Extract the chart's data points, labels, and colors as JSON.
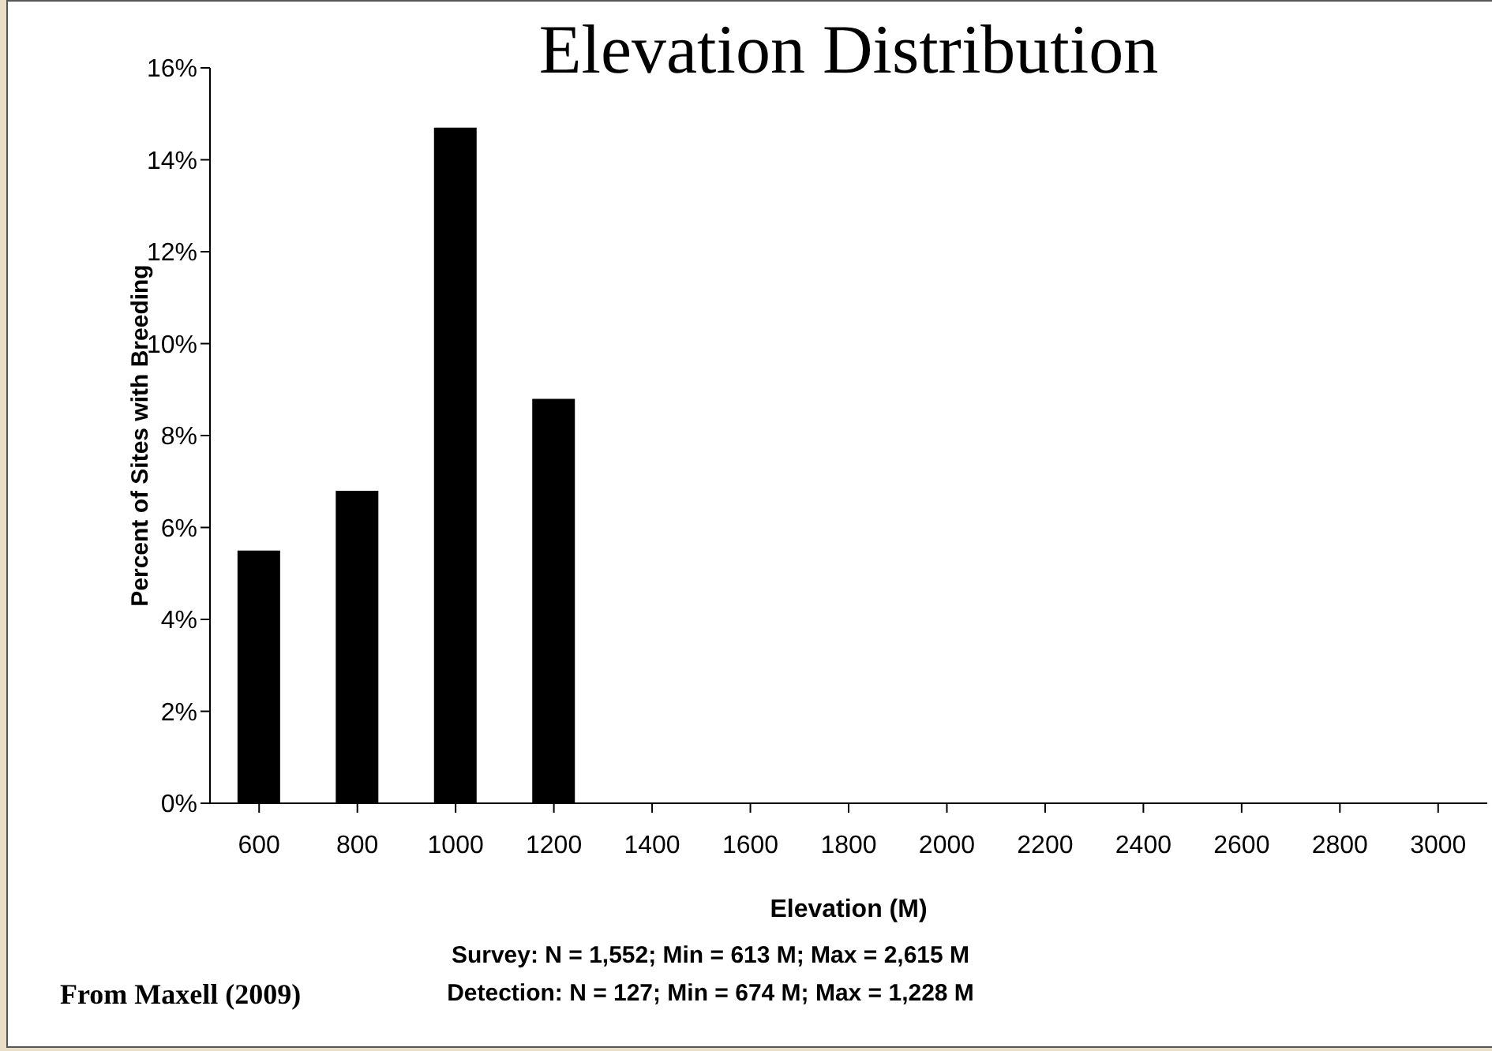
{
  "chart_data": {
    "type": "bar",
    "title": "Elevation Distribution",
    "xlabel": "Elevation (M)",
    "ylabel": "Percent of Sites with Breeding",
    "categories": [
      "600",
      "800",
      "1000",
      "1200",
      "1400",
      "1600",
      "1800",
      "2000",
      "2200",
      "2400",
      "2600",
      "2800",
      "3000"
    ],
    "values": [
      5.5,
      6.8,
      14.7,
      8.8,
      0,
      0,
      0,
      0,
      0,
      0,
      0,
      0,
      0
    ],
    "color": "#000000",
    "ylim": [
      0,
      16
    ],
    "yticks": [
      {
        "value": 0,
        "label": "0%"
      },
      {
        "value": 2,
        "label": "2%"
      },
      {
        "value": 4,
        "label": "4%"
      },
      {
        "value": 6,
        "label": "6%"
      },
      {
        "value": 8,
        "label": "8%"
      },
      {
        "value": 10,
        "label": "10%"
      },
      {
        "value": 12,
        "label": "12%"
      },
      {
        "value": 14,
        "label": "14%"
      },
      {
        "value": 16,
        "label": "16%"
      }
    ],
    "grid": false,
    "legend": false,
    "annotations": [
      "From Maxell (2009)",
      "Survey: N = 1,552; Min = 613 M; Max = 2,615 M",
      "Detection: N = 127; Min = 674 M; Max = 1,228 M"
    ]
  }
}
